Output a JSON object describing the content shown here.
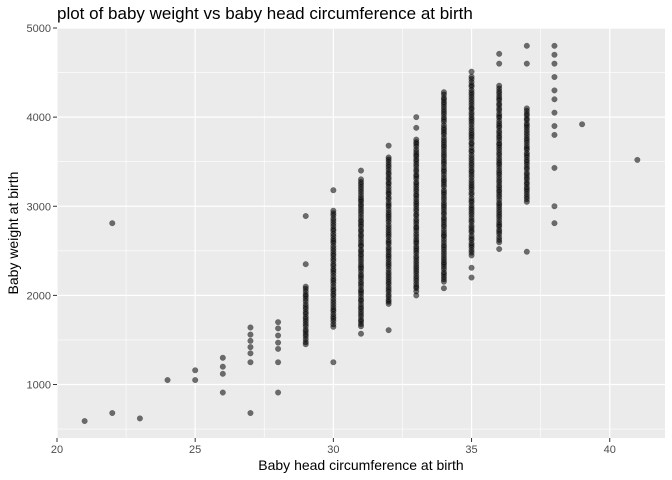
{
  "chart_data": {
    "type": "scatter",
    "title": "plot of baby weight vs baby head circumference at birth",
    "xlabel": "Baby head circumference at birth",
    "ylabel": "Baby weight at birth",
    "xlim": [
      20,
      42
    ],
    "ylim": [
      400,
      5000
    ],
    "x_ticks": [
      20,
      25,
      30,
      35,
      40
    ],
    "y_ticks": [
      1000,
      2000,
      3000,
      4000,
      5000
    ],
    "grid": true,
    "point_color": "#000000",
    "point_alpha": 0.55,
    "background_color": "#ebebeb",
    "grid_color": "#ffffff",
    "columns": [
      {
        "x": 29,
        "min": 1450,
        "max": 2100
      },
      {
        "x": 30,
        "min": 1650,
        "max": 2950
      },
      {
        "x": 31,
        "min": 1650,
        "max": 3300
      },
      {
        "x": 32,
        "min": 1900,
        "max": 3550
      },
      {
        "x": 33,
        "min": 2050,
        "max": 3750
      },
      {
        "x": 34,
        "min": 2150,
        "max": 4250
      },
      {
        "x": 35,
        "min": 2450,
        "max": 4450
      },
      {
        "x": 36,
        "min": 2600,
        "max": 4350
      },
      {
        "x": 37,
        "min": 3050,
        "max": 4100
      }
    ],
    "points": [
      {
        "x": 21,
        "y": 590
      },
      {
        "x": 22,
        "y": 2810
      },
      {
        "x": 22,
        "y": 680
      },
      {
        "x": 23,
        "y": 620
      },
      {
        "x": 24,
        "y": 1050
      },
      {
        "x": 25,
        "y": 1050
      },
      {
        "x": 25,
        "y": 1160
      },
      {
        "x": 26,
        "y": 910
      },
      {
        "x": 26,
        "y": 1120
      },
      {
        "x": 26,
        "y": 1200
      },
      {
        "x": 26,
        "y": 1300
      },
      {
        "x": 27,
        "y": 680
      },
      {
        "x": 27,
        "y": 1250
      },
      {
        "x": 27,
        "y": 1350
      },
      {
        "x": 27,
        "y": 1420
      },
      {
        "x": 27,
        "y": 1490
      },
      {
        "x": 27,
        "y": 1560
      },
      {
        "x": 27,
        "y": 1640
      },
      {
        "x": 28,
        "y": 910
      },
      {
        "x": 28,
        "y": 1250
      },
      {
        "x": 28,
        "y": 1400
      },
      {
        "x": 28,
        "y": 1470
      },
      {
        "x": 28,
        "y": 1550
      },
      {
        "x": 28,
        "y": 1630
      },
      {
        "x": 28,
        "y": 1700
      },
      {
        "x": 29,
        "y": 2350
      },
      {
        "x": 29,
        "y": 2890
      },
      {
        "x": 30,
        "y": 1250
      },
      {
        "x": 30,
        "y": 3180
      },
      {
        "x": 31,
        "y": 1570
      },
      {
        "x": 31,
        "y": 3400
      },
      {
        "x": 32,
        "y": 1610
      },
      {
        "x": 32,
        "y": 3680
      },
      {
        "x": 33,
        "y": 2000
      },
      {
        "x": 33,
        "y": 3880
      },
      {
        "x": 33,
        "y": 4000
      },
      {
        "x": 34,
        "y": 2080
      },
      {
        "x": 34,
        "y": 4280
      },
      {
        "x": 35,
        "y": 2200
      },
      {
        "x": 35,
        "y": 2310
      },
      {
        "x": 35,
        "y": 4510
      },
      {
        "x": 36,
        "y": 2520
      },
      {
        "x": 36,
        "y": 4600
      },
      {
        "x": 36,
        "y": 4710
      },
      {
        "x": 37,
        "y": 2490
      },
      {
        "x": 37,
        "y": 4600
      },
      {
        "x": 37,
        "y": 4800
      },
      {
        "x": 38,
        "y": 2810
      },
      {
        "x": 38,
        "y": 3000
      },
      {
        "x": 38,
        "y": 4600
      },
      {
        "x": 38,
        "y": 4700
      },
      {
        "x": 38,
        "y": 4800
      },
      {
        "x": 38,
        "y": 3430
      },
      {
        "x": 38,
        "y": 3800
      },
      {
        "x": 38,
        "y": 3900
      },
      {
        "x": 38,
        "y": 4050
      },
      {
        "x": 38,
        "y": 4200
      },
      {
        "x": 38,
        "y": 4300
      },
      {
        "x": 38,
        "y": 4450
      },
      {
        "x": 39,
        "y": 3920
      },
      {
        "x": 41,
        "y": 3520
      }
    ]
  }
}
